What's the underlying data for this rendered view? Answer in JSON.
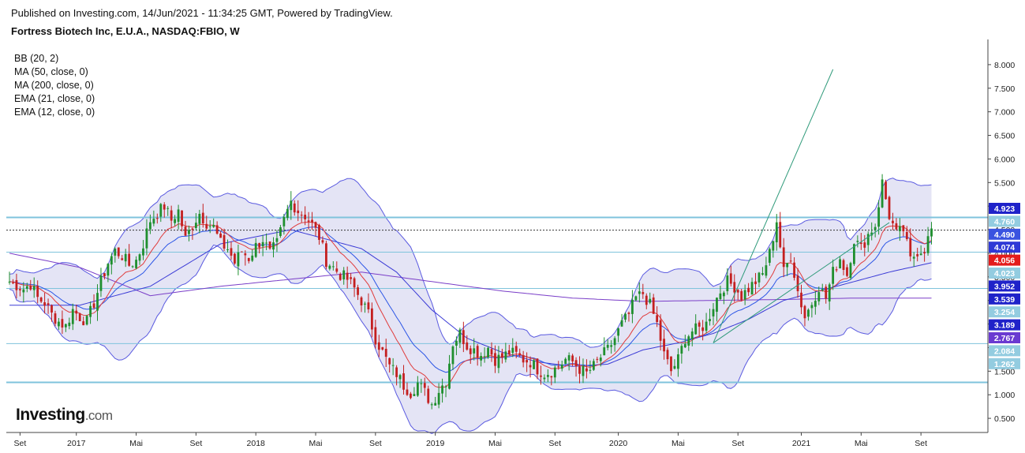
{
  "header": {
    "published": "Published on Investing.com, 14/Jun/2021 - 11:34:25 GMT, Powered by TradingView.",
    "symbol": "Fortress Biotech Inc, E.U.A., NASDAQ:FBIO, W"
  },
  "indicators": [
    "BB (20, 2)",
    "MA (50, close, 0)",
    "MA (200, close, 0)",
    "EMA (21, close, 0)",
    "EMA (12, close, 0)"
  ],
  "logo": {
    "brand": "Investing",
    "suffix": ".com"
  },
  "chart_data": {
    "type": "candlestick",
    "timeframe": "weekly",
    "ylim": [
      0.2,
      8.4
    ],
    "y_ticks": [
      "8.000",
      "7.500",
      "7.000",
      "6.500",
      "6.000",
      "5.500",
      "5.000",
      "4.500",
      "4.000",
      "3.500",
      "3.000",
      "2.500",
      "2.000",
      "1.500",
      "1.000",
      "0.500"
    ],
    "x_ticks": [
      {
        "label": "Set",
        "week": 3
      },
      {
        "label": "2017",
        "week": 19
      },
      {
        "label": "Mai",
        "week": 36
      },
      {
        "label": "Set",
        "week": 53
      },
      {
        "label": "2018",
        "week": 70
      },
      {
        "label": "Mai",
        "week": 87
      },
      {
        "label": "Set",
        "week": 104
      },
      {
        "label": "2019",
        "week": 121
      },
      {
        "label": "Mai",
        "week": 138
      },
      {
        "label": "Set",
        "week": 155
      },
      {
        "label": "2020",
        "week": 173
      },
      {
        "label": "Mai",
        "week": 190
      },
      {
        "label": "Set",
        "week": 207
      },
      {
        "label": "2021",
        "week": 225
      },
      {
        "label": "Mai",
        "week": 242
      },
      {
        "label": "Set",
        "week": 259
      }
    ],
    "price_badges": [
      {
        "label": "4.923",
        "color": "#1f22c9"
      },
      {
        "label": "4.760",
        "color": "#93cce0"
      },
      {
        "label": "4.490",
        "color": "#3a53e0"
      },
      {
        "label": "4.074",
        "color": "#2f39d6"
      },
      {
        "label": "4.056",
        "color": "#e31c1c"
      },
      {
        "label": "4.023",
        "color": "#93cce0"
      },
      {
        "label": "3.952",
        "color": "#1f22c9"
      },
      {
        "label": "3.539",
        "color": "#1f22c9"
      },
      {
        "label": "3.254",
        "color": "#93cce0"
      },
      {
        "label": "3.189",
        "color": "#1f22c9"
      },
      {
        "label": "2.767",
        "color": "#6a3ad1"
      },
      {
        "label": "2.084",
        "color": "#93cce0"
      },
      {
        "label": "1.262",
        "color": "#93cce0"
      }
    ],
    "horizontal_levels": [
      {
        "value": 4.76,
        "color": "#7fc3dc",
        "weight": 2
      },
      {
        "value": 4.49,
        "color": "#333333",
        "dashed": true
      },
      {
        "value": 4.023,
        "color": "#7fc3dc",
        "weight": 1
      },
      {
        "value": 3.254,
        "color": "#7fc3dc",
        "weight": 1
      },
      {
        "value": 2.084,
        "color": "#7fc3dc",
        "weight": 1
      },
      {
        "value": 1.262,
        "color": "#7fc3dc",
        "weight": 2
      }
    ],
    "trend_lines": [
      {
        "week1": 200,
        "price1": 2.1,
        "week2": 234,
        "price2": 7.9
      },
      {
        "week1": 200,
        "price1": 2.1,
        "week2": 250,
        "price2": 4.65
      }
    ],
    "series_colors": {
      "up": "#1f8f2e",
      "down": "#c42020",
      "bb": "#5a5ae0",
      "bb_fill": "#e4e4f5",
      "ma50": "#3b3bd6",
      "ma200": "#7a3ec8",
      "ema21": "#2b55e6",
      "ema12": "#e03c3c"
    },
    "anchors": [
      [
        0,
        3.4
      ],
      [
        4,
        3.25
      ],
      [
        6,
        3.35
      ],
      [
        8,
        3.05
      ],
      [
        10,
        2.95
      ],
      [
        12,
        2.7
      ],
      [
        14,
        2.55
      ],
      [
        16,
        2.45
      ],
      [
        18,
        2.8
      ],
      [
        20,
        2.65
      ],
      [
        22,
        2.55
      ],
      [
        24,
        2.95
      ],
      [
        26,
        3.4
      ],
      [
        28,
        3.8
      ],
      [
        30,
        4.05
      ],
      [
        32,
        3.95
      ],
      [
        34,
        3.75
      ],
      [
        36,
        3.85
      ],
      [
        38,
        4.2
      ],
      [
        40,
        4.7
      ],
      [
        42,
        4.85
      ],
      [
        44,
        5.0
      ],
      [
        46,
        4.7
      ],
      [
        48,
        4.9
      ],
      [
        50,
        4.3
      ],
      [
        52,
        4.6
      ],
      [
        54,
        4.85
      ],
      [
        56,
        4.65
      ],
      [
        58,
        4.55
      ],
      [
        60,
        4.2
      ],
      [
        62,
        4.1
      ],
      [
        64,
        3.8
      ],
      [
        66,
        4.05
      ],
      [
        68,
        3.9
      ],
      [
        70,
        4.15
      ],
      [
        72,
        4.3
      ],
      [
        74,
        4.0
      ],
      [
        76,
        4.2
      ],
      [
        78,
        4.7
      ],
      [
        80,
        5.1
      ],
      [
        82,
        4.9
      ],
      [
        84,
        4.8
      ],
      [
        86,
        4.6
      ],
      [
        88,
        4.35
      ],
      [
        90,
        3.85
      ],
      [
        92,
        3.7
      ],
      [
        94,
        3.55
      ],
      [
        96,
        3.45
      ],
      [
        98,
        3.25
      ],
      [
        100,
        3.0
      ],
      [
        102,
        2.7
      ],
      [
        104,
        2.2
      ],
      [
        106,
        1.9
      ],
      [
        108,
        1.6
      ],
      [
        110,
        1.45
      ],
      [
        112,
        1.2
      ],
      [
        114,
        1.05
      ],
      [
        116,
        1.25
      ],
      [
        118,
        1.05
      ],
      [
        120,
        0.8
      ],
      [
        122,
        1.1
      ],
      [
        124,
        1.3
      ],
      [
        126,
        2.1
      ],
      [
        128,
        2.3
      ],
      [
        130,
        2.05
      ],
      [
        132,
        1.95
      ],
      [
        134,
        1.85
      ],
      [
        136,
        2.0
      ],
      [
        138,
        1.75
      ],
      [
        140,
        1.8
      ],
      [
        142,
        1.9
      ],
      [
        144,
        1.85
      ],
      [
        146,
        1.75
      ],
      [
        148,
        1.7
      ],
      [
        150,
        1.55
      ],
      [
        152,
        1.45
      ],
      [
        154,
        1.5
      ],
      [
        156,
        1.6
      ],
      [
        158,
        1.75
      ],
      [
        160,
        1.7
      ],
      [
        162,
        1.55
      ],
      [
        164,
        1.45
      ],
      [
        166,
        1.6
      ],
      [
        168,
        1.8
      ],
      [
        170,
        1.95
      ],
      [
        172,
        2.2
      ],
      [
        174,
        2.5
      ],
      [
        176,
        2.7
      ],
      [
        178,
        3.05
      ],
      [
        180,
        3.15
      ],
      [
        182,
        2.9
      ],
      [
        184,
        2.5
      ],
      [
        186,
        1.85
      ],
      [
        188,
        1.5
      ],
      [
        190,
        1.75
      ],
      [
        192,
        2.2
      ],
      [
        194,
        2.35
      ],
      [
        196,
        2.4
      ],
      [
        198,
        2.5
      ],
      [
        200,
        2.9
      ],
      [
        202,
        3.2
      ],
      [
        204,
        3.4
      ],
      [
        206,
        3.3
      ],
      [
        208,
        3.1
      ],
      [
        210,
        3.25
      ],
      [
        212,
        3.4
      ],
      [
        214,
        3.55
      ],
      [
        216,
        4.0
      ],
      [
        218,
        4.7
      ],
      [
        220,
        3.6
      ],
      [
        222,
        3.95
      ],
      [
        224,
        3.2
      ],
      [
        226,
        2.65
      ],
      [
        228,
        2.95
      ],
      [
        230,
        3.3
      ],
      [
        232,
        3.05
      ],
      [
        234,
        3.6
      ],
      [
        236,
        3.9
      ],
      [
        238,
        3.55
      ],
      [
        240,
        4.3
      ],
      [
        242,
        4.1
      ],
      [
        244,
        4.4
      ],
      [
        246,
        4.6
      ],
      [
        248,
        5.5
      ],
      [
        250,
        4.8
      ],
      [
        252,
        4.4
      ],
      [
        254,
        4.5
      ],
      [
        256,
        3.85
      ],
      [
        258,
        4.05
      ],
      [
        260,
        4.1
      ],
      [
        262,
        4.5
      ]
    ],
    "ma200_anchors": [
      [
        0,
        4.0
      ],
      [
        20,
        3.7
      ],
      [
        40,
        3.1
      ],
      [
        60,
        3.3
      ],
      [
        80,
        3.45
      ],
      [
        100,
        3.6
      ],
      [
        120,
        3.4
      ],
      [
        140,
        3.2
      ],
      [
        160,
        3.05
      ],
      [
        180,
        2.98
      ],
      [
        200,
        3.0
      ],
      [
        220,
        3.02
      ],
      [
        240,
        3.05
      ],
      [
        262,
        3.05
      ]
    ],
    "ma50_anchors": [
      [
        0,
        2.9
      ],
      [
        20,
        2.9
      ],
      [
        40,
        3.3
      ],
      [
        60,
        4.2
      ],
      [
        80,
        4.5
      ],
      [
        100,
        4.1
      ],
      [
        110,
        3.6
      ],
      [
        120,
        2.8
      ],
      [
        130,
        2.2
      ],
      [
        140,
        1.9
      ],
      [
        150,
        1.7
      ],
      [
        160,
        1.6
      ],
      [
        170,
        1.65
      ],
      [
        180,
        1.95
      ],
      [
        190,
        2.1
      ],
      [
        200,
        2.3
      ],
      [
        210,
        2.6
      ],
      [
        220,
        3.0
      ],
      [
        230,
        3.2
      ],
      [
        240,
        3.4
      ],
      [
        250,
        3.6
      ],
      [
        262,
        3.8
      ]
    ]
  }
}
